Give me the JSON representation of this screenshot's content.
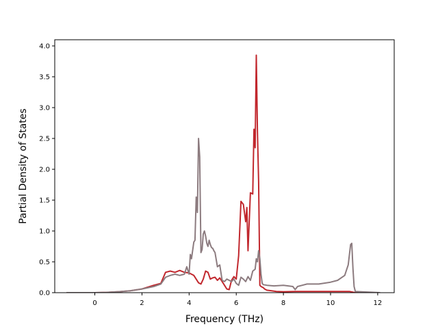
{
  "chart_data": {
    "type": "line",
    "title": "",
    "xlabel": "Frequency (THz)",
    "ylabel": "Partial Density of States",
    "xlim": [
      -1.7,
      12.7
    ],
    "ylim": [
      0,
      4.1
    ],
    "xticks": [
      0,
      2,
      4,
      6,
      8,
      10,
      12
    ],
    "yticks": [
      0.0,
      0.5,
      1.0,
      1.5,
      2.0,
      2.5,
      3.0,
      3.5,
      4.0
    ],
    "xtick_labels": [
      "0",
      "2",
      "4",
      "6",
      "8",
      "10",
      "12"
    ],
    "ytick_labels": [
      "0.0",
      "0.5",
      "1.0",
      "1.5",
      "2.0",
      "2.5",
      "3.0",
      "3.5",
      "4.0"
    ],
    "grid": false,
    "legend": "none",
    "series": [
      {
        "color": "#c1272d",
        "x": [
          -1.2,
          0,
          0.5,
          1,
          1.5,
          2,
          2.5,
          2.8,
          3.0,
          3.2,
          3.4,
          3.6,
          3.8,
          4.0,
          4.2,
          4.4,
          4.5,
          4.6,
          4.7,
          4.8,
          4.9,
          5.0,
          5.1,
          5.2,
          5.3,
          5.4,
          5.5,
          5.6,
          5.7,
          5.8,
          5.9,
          6.0,
          6.1,
          6.2,
          6.3,
          6.4,
          6.45,
          6.5,
          6.6,
          6.7,
          6.75,
          6.8,
          6.85,
          6.9,
          6.95,
          7.0,
          7.05,
          7.1,
          7.15,
          7.2,
          7.3,
          7.5,
          7.7,
          8,
          8.5,
          9,
          10,
          10.8,
          11.0,
          11.2,
          12.1
        ],
        "y": [
          0,
          0,
          0.005,
          0.015,
          0.03,
          0.06,
          0.12,
          0.15,
          0.33,
          0.35,
          0.33,
          0.36,
          0.33,
          0.32,
          0.28,
          0.16,
          0.14,
          0.22,
          0.35,
          0.33,
          0.22,
          0.24,
          0.25,
          0.2,
          0.24,
          0.18,
          0.12,
          0.06,
          0.05,
          0.2,
          0.26,
          0.22,
          0.6,
          1.48,
          1.43,
          1.15,
          1.38,
          0.68,
          1.62,
          1.6,
          2.65,
          2.35,
          3.85,
          2.6,
          1.8,
          0.12,
          0.1,
          0.09,
          0.08,
          0.06,
          0.04,
          0.03,
          0.02,
          0.015,
          0.02,
          0.02,
          0.02,
          0.02,
          0.005,
          0.0,
          0.0
        ]
      },
      {
        "color": "#8c7b7f",
        "x": [
          -1.2,
          0,
          0.5,
          1,
          1.5,
          2,
          2.5,
          2.8,
          3.0,
          3.2,
          3.4,
          3.6,
          3.8,
          3.9,
          4.0,
          4.05,
          4.1,
          4.2,
          4.25,
          4.3,
          4.35,
          4.4,
          4.45,
          4.5,
          4.55,
          4.6,
          4.65,
          4.7,
          4.75,
          4.8,
          4.85,
          4.9,
          4.95,
          5.0,
          5.05,
          5.1,
          5.2,
          5.3,
          5.4,
          5.5,
          5.6,
          5.7,
          5.8,
          5.9,
          6.0,
          6.1,
          6.2,
          6.3,
          6.4,
          6.5,
          6.6,
          6.7,
          6.8,
          6.85,
          6.9,
          6.95,
          7.0,
          7.05,
          7.1,
          7.15,
          7.3,
          7.6,
          8.0,
          8.4,
          8.5,
          8.6,
          8.8,
          9.0,
          9.5,
          10.0,
          10.3,
          10.6,
          10.75,
          10.85,
          10.9,
          10.95,
          11.0,
          11.05,
          12.1
        ],
        "y": [
          0,
          0,
          0.005,
          0.015,
          0.03,
          0.06,
          0.1,
          0.14,
          0.25,
          0.28,
          0.3,
          0.28,
          0.3,
          0.42,
          0.3,
          0.62,
          0.55,
          0.82,
          0.85,
          1.55,
          1.3,
          2.5,
          2.2,
          0.65,
          0.7,
          0.95,
          1.0,
          0.92,
          0.8,
          0.75,
          0.85,
          0.78,
          0.73,
          0.72,
          0.68,
          0.65,
          0.42,
          0.45,
          0.2,
          0.18,
          0.22,
          0.2,
          0.18,
          0.22,
          0.15,
          0.12,
          0.25,
          0.22,
          0.18,
          0.26,
          0.2,
          0.35,
          0.38,
          0.55,
          0.5,
          0.68,
          0.55,
          0.3,
          0.15,
          0.13,
          0.12,
          0.11,
          0.12,
          0.1,
          0.05,
          0.1,
          0.12,
          0.14,
          0.14,
          0.17,
          0.2,
          0.28,
          0.45,
          0.78,
          0.8,
          0.4,
          0.1,
          0.02,
          0.0
        ]
      }
    ]
  }
}
